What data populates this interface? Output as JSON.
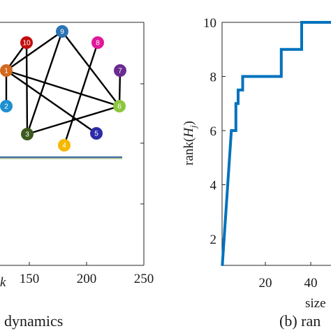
{
  "chart_data": [
    {
      "type": "line",
      "panel": "left",
      "xlabel": "k",
      "caption": "dynamics",
      "xticks": [
        150,
        200,
        250
      ],
      "xlim": [
        75,
        250
      ],
      "inset_graph": {
        "nodes": [
          {
            "id": "1",
            "color": "#d2691e"
          },
          {
            "id": "2",
            "color": "#1e90d0"
          },
          {
            "id": "3",
            "color": "#3d5a1e"
          },
          {
            "id": "4",
            "color": "#f5b800"
          },
          {
            "id": "5",
            "color": "#2c2ca8"
          },
          {
            "id": "6",
            "color": "#8cc63f"
          },
          {
            "id": "7",
            "color": "#6a2c91"
          },
          {
            "id": "8",
            "color": "#e0189a"
          },
          {
            "id": "9",
            "color": "#2b73b5"
          },
          {
            "id": "10",
            "color": "#c40d0d"
          }
        ],
        "edges": [
          [
            "1",
            "9"
          ],
          [
            "1",
            "10"
          ],
          [
            "1",
            "2"
          ],
          [
            "1",
            "5"
          ],
          [
            "1",
            "6"
          ],
          [
            "9",
            "3"
          ],
          [
            "9",
            "6"
          ],
          [
            "10",
            "3"
          ],
          [
            "3",
            "6"
          ],
          [
            "8",
            "4"
          ],
          [
            "6",
            "7"
          ]
        ]
      }
    },
    {
      "type": "line",
      "panel": "right",
      "caption": "(b) ran",
      "xlabel": "size",
      "ylabel": "rank(H_j)",
      "ylabel_main": "rank(",
      "ylabel_var": "H",
      "ylabel_sub": "j",
      "ylabel_close": ")",
      "xticks": [
        20,
        40
      ],
      "yticks": [
        2,
        4,
        6,
        8,
        10
      ],
      "xlim": [
        0,
        50
      ],
      "ylim": [
        1,
        10
      ],
      "color": "#0072bd",
      "x": [
        1,
        5,
        5,
        7,
        7,
        8,
        8,
        10,
        10,
        27,
        27,
        36,
        36,
        50
      ],
      "y": [
        1,
        6,
        6,
        6,
        7,
        7,
        7.5,
        7.5,
        8,
        8,
        9,
        9,
        10,
        10
      ]
    }
  ]
}
